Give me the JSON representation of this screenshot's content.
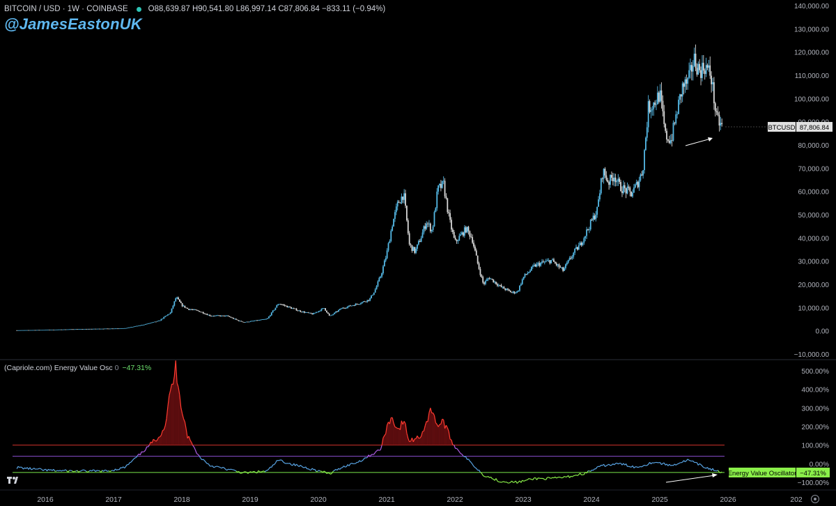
{
  "header": {
    "symbol": "BITCOIN / USD · 1W · COINBASE",
    "ohlc": "O88,639.87 H90,541.80 L86,997.14 C87,806.84 −833.11 (−0.94%)"
  },
  "watermark": "@JamesEastonUK",
  "oscillator_header": {
    "name": "(Capriole.com) Energy Value Osc",
    "param": "0",
    "value": "−47.31%"
  },
  "price_tag": {
    "symbol": "BTCUSD",
    "value": "87,806.84"
  },
  "osc_tag": {
    "name": "Energy Value Oscillator",
    "value": "−47.31%"
  },
  "colors": {
    "candle_up": "#55b9e6",
    "candle_down": "#d8d8d8",
    "osc_line": "#5aa7e8",
    "osc_high_fill": "#ff3b30",
    "osc_low_line": "#8bf04a",
    "level_red": "#d0332b",
    "level_purple": "#8a4fd1",
    "level_green": "#7be84a"
  },
  "icons": [
    "tradingview-logo-icon",
    "settings-gear-icon",
    "live-dot-icon"
  ],
  "chart_data": [
    {
      "type": "candlestick",
      "title": "BITCOIN / USD · 1W · COINBASE",
      "x_ticks": [
        "2016",
        "2017",
        "2018",
        "2019",
        "2020",
        "2021",
        "2022",
        "2023",
        "2024",
        "2025",
        "2026",
        "202"
      ],
      "y_ticks": [
        "140,000.00",
        "130,000.00",
        "120,000.00",
        "110,000.00",
        "100,000.00",
        "90,000.00",
        "80,000.00",
        "70,000.00",
        "60,000.00",
        "50,000.00",
        "40,000.00",
        "30,000.00",
        "20,000.00",
        "10,000.00",
        "0.00",
        "−10,000.00"
      ],
      "ylim": [
        -10000,
        140000
      ],
      "x": [
        "2015-08",
        "2016-01",
        "2016-06",
        "2016-12",
        "2017-03",
        "2017-06",
        "2017-09",
        "2017-11",
        "2017-12",
        "2018-01",
        "2018-02",
        "2018-04",
        "2018-06",
        "2018-09",
        "2018-11",
        "2018-12",
        "2019-04",
        "2019-06",
        "2019-08",
        "2019-10",
        "2019-12",
        "2020-02",
        "2020-03",
        "2020-05",
        "2020-08",
        "2020-10",
        "2020-11",
        "2020-12",
        "2021-01",
        "2021-02",
        "2021-03",
        "2021-04",
        "2021-05",
        "2021-06",
        "2021-07",
        "2021-08",
        "2021-09",
        "2021-10",
        "2021-11",
        "2021-12",
        "2022-01",
        "2022-03",
        "2022-04",
        "2022-05",
        "2022-06",
        "2022-07",
        "2022-09",
        "2022-11",
        "2022-12",
        "2023-01",
        "2023-03",
        "2023-04",
        "2023-06",
        "2023-08",
        "2023-10",
        "2023-11",
        "2023-12",
        "2024-02",
        "2024-03",
        "2024-04",
        "2024-05",
        "2024-06",
        "2024-08",
        "2024-09",
        "2024-10",
        "2024-11",
        "2024-12",
        "2025-01",
        "2025-02",
        "2025-03",
        "2025-04",
        "2025-05",
        "2025-06",
        "2025-07",
        "2025-08",
        "2025-09",
        "2025-10",
        "2025-11",
        "2025-12"
      ],
      "close": [
        250,
        400,
        700,
        950,
        1100,
        2500,
        4300,
        7800,
        14500,
        11000,
        9500,
        8500,
        6500,
        6400,
        4300,
        3700,
        5100,
        11800,
        10000,
        8300,
        7200,
        9800,
        6200,
        9600,
        11700,
        13500,
        17800,
        24000,
        33000,
        46000,
        55000,
        59000,
        37000,
        34000,
        40000,
        47000,
        43000,
        61000,
        63000,
        48000,
        38000,
        44000,
        40000,
        29000,
        20000,
        23000,
        19000,
        16500,
        16800,
        23000,
        28000,
        29000,
        30300,
        26000,
        34000,
        37000,
        42000,
        52000,
        69000,
        64000,
        67000,
        62000,
        59000,
        63000,
        69000,
        96000,
        98000,
        102000,
        84000,
        82000,
        94000,
        105000,
        107000,
        117000,
        112000,
        114000,
        110000,
        91000,
        87807
      ],
      "series": [
        {
          "name": "BTCUSD",
          "last": 87806.84
        }
      ]
    },
    {
      "type": "line",
      "title": "(Capriole.com) Energy Value Osc",
      "y_ticks": [
        "500.00%",
        "400.00%",
        "300.00%",
        "200.00%",
        "100.00%",
        "0.00%",
        "−100.00%"
      ],
      "ylim": [
        -150,
        560
      ],
      "levels": [
        100,
        40,
        -47
      ],
      "x": [
        "2015-08",
        "2016-01",
        "2016-06",
        "2016-12",
        "2017-03",
        "2017-06",
        "2017-09",
        "2017-10",
        "2017-11",
        "2017-12",
        "2018-01",
        "2018-02",
        "2018-04",
        "2018-06",
        "2018-09",
        "2018-12",
        "2019-04",
        "2019-06",
        "2019-08",
        "2019-12",
        "2020-03",
        "2020-05",
        "2020-08",
        "2020-11",
        "2020-12",
        "2021-01",
        "2021-02",
        "2021-03",
        "2021-04",
        "2021-05",
        "2021-07",
        "2021-09",
        "2021-10",
        "2021-11",
        "2021-12",
        "2022-01",
        "2022-03",
        "2022-06",
        "2022-09",
        "2022-12",
        "2023-03",
        "2023-06",
        "2023-09",
        "2023-12",
        "2024-03",
        "2024-06",
        "2024-09",
        "2024-12",
        "2025-03",
        "2025-06",
        "2025-09",
        "2025-12"
      ],
      "values": [
        -20,
        -35,
        -40,
        -40,
        -20,
        60,
        150,
        200,
        380,
        520,
        300,
        150,
        40,
        -10,
        -30,
        -50,
        -40,
        20,
        0,
        -30,
        -55,
        -20,
        10,
        60,
        80,
        200,
        250,
        180,
        230,
        120,
        150,
        300,
        200,
        230,
        150,
        90,
        30,
        -60,
        -95,
        -100,
        -80,
        -80,
        -70,
        -50,
        -10,
        0,
        -20,
        10,
        -10,
        20,
        -20,
        -47.31
      ],
      "series": [
        {
          "name": "Energy Value Oscillator",
          "last": -47.31
        }
      ]
    }
  ]
}
